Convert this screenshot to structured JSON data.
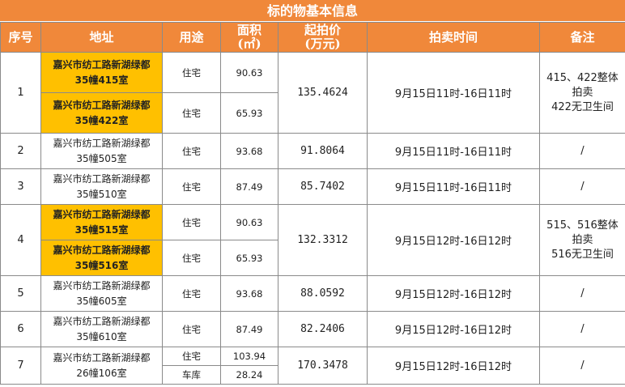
{
  "title": "标的物基本信息",
  "headers": {
    "seq": "序号",
    "address": "地址",
    "use": "用途",
    "area_line1": "面积",
    "area_line2": "(㎡)",
    "price_line1": "起拍价",
    "price_line2": "(万元)",
    "time": "拍卖时间",
    "note": "备注"
  },
  "rows": [
    {
      "seq": "1",
      "units": [
        {
          "addr1": "嘉兴市纺工路新湖绿都",
          "addr2": "35幢415室",
          "use": "住宅",
          "area": "90.63",
          "highlight": true
        },
        {
          "addr1": "嘉兴市纺工路新湖绿都",
          "addr2": "35幢422室",
          "use": "住宅",
          "area": "65.93",
          "highlight": true
        }
      ],
      "price": "135.4624",
      "time": "9月15日11时-16日11时",
      "note": [
        "415、422整体",
        "拍卖",
        "422无卫生间"
      ]
    },
    {
      "seq": "2",
      "units": [
        {
          "addr1": "嘉兴市纺工路新湖绿都",
          "addr2": "35幢505室",
          "use": "住宅",
          "area": "93.68",
          "highlight": false
        }
      ],
      "price": "91.8064",
      "time": "9月15日11时-16日11时",
      "note": [
        "/"
      ]
    },
    {
      "seq": "3",
      "units": [
        {
          "addr1": "嘉兴市纺工路新湖绿都",
          "addr2": "35幢510室",
          "use": "住宅",
          "area": "87.49",
          "highlight": false
        }
      ],
      "price": "85.7402",
      "time": "9月15日11时-16日11时",
      "note": [
        "/"
      ]
    },
    {
      "seq": "4",
      "units": [
        {
          "addr1": "嘉兴市纺工路新湖绿都",
          "addr2": "35幢515室",
          "use": "住宅",
          "area": "90.63",
          "highlight": true
        },
        {
          "addr1": "嘉兴市纺工路新湖绿都",
          "addr2": "35幢516室",
          "use": "住宅",
          "area": "65.93",
          "highlight": true
        }
      ],
      "price": "132.3312",
      "time": "9月15日12时-16日12时",
      "note": [
        "515、516整体",
        "拍卖",
        "516无卫生间"
      ]
    },
    {
      "seq": "5",
      "units": [
        {
          "addr1": "嘉兴市纺工路新湖绿都",
          "addr2": "35幢605室",
          "use": "住宅",
          "area": "93.68",
          "highlight": false
        }
      ],
      "price": "88.0592",
      "time": "9月15日12时-16日12时",
      "note": [
        "/"
      ]
    },
    {
      "seq": "6",
      "units": [
        {
          "addr1": "嘉兴市纺工路新湖绿都",
          "addr2": "35幢610室",
          "use": "住宅",
          "area": "87.49",
          "highlight": false
        }
      ],
      "price": "82.2406",
      "time": "9月15日12时-16日12时",
      "note": [
        "/"
      ]
    },
    {
      "seq": "7",
      "address1": "嘉兴市纺工路新湖绿都",
      "address2": "26幢106室",
      "sub": [
        {
          "use": "住宅",
          "area": "103.94"
        },
        {
          "use": "车库",
          "area": "28.24"
        }
      ],
      "price": "170.3478",
      "time": "9月15日12时-16日12时",
      "note": [
        "/"
      ]
    }
  ],
  "colors": {
    "header_bg": "#f0883a",
    "highlight_bg": "#ffc000"
  }
}
